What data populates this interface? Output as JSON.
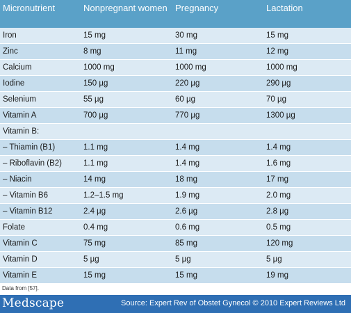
{
  "table": {
    "headers": [
      "Micronutrient",
      "Nonpregnant women",
      "Pregnancy",
      "Lactation"
    ],
    "rows": [
      [
        "Iron",
        "15 mg",
        "30 mg",
        "15 mg"
      ],
      [
        "Zinc",
        "8 mg",
        "11 mg",
        "12 mg"
      ],
      [
        "Calcium",
        "1000 mg",
        "1000 mg",
        "1000 mg"
      ],
      [
        "Iodine",
        "150 µg",
        "220 µg",
        "290 µg"
      ],
      [
        "Selenium",
        "55 µg",
        "60 µg",
        "70 µg"
      ],
      [
        "Vitamin A",
        "700 µg",
        "770 µg",
        "1300 µg"
      ],
      [
        "Vitamin B:",
        "",
        "",
        ""
      ],
      [
        "– Thiamin (B1)",
        "1.1 mg",
        "1.4 mg",
        "1.4 mg"
      ],
      [
        "– Riboflavin (B2)",
        "1.1 mg",
        "1.4 mg",
        "1.6 mg"
      ],
      [
        "– Niacin",
        "14 mg",
        "18 mg",
        "17 mg"
      ],
      [
        "– Vitamin B6",
        "1.2–1.5 mg",
        "1.9 mg",
        "2.0 mg"
      ],
      [
        "– Vitamin B12",
        "2.4 µg",
        "2.6 µg",
        "2.8 µg"
      ],
      [
        "Folate",
        "0.4 mg",
        "0.6 mg",
        "0.5 mg"
      ],
      [
        "Vitamin C",
        "75 mg",
        "85 mg",
        "120 mg"
      ],
      [
        "Vitamin D",
        "5 µg",
        "5 µg",
        "5 µg"
      ],
      [
        "Vitamin E",
        "15 mg",
        "15 mg",
        "19 mg"
      ]
    ]
  },
  "footnote": "Data from [57].",
  "footer": {
    "logo": "Medscape",
    "source": "Source: Expert Rev of Obstet Gynecol © 2010 Expert Reviews Ltd"
  },
  "colors": {
    "header_bg": "#5aa1c8",
    "row_light": "#dceaf4",
    "row_dark": "#c6dded",
    "footer_bg": "#2f6fb4"
  }
}
